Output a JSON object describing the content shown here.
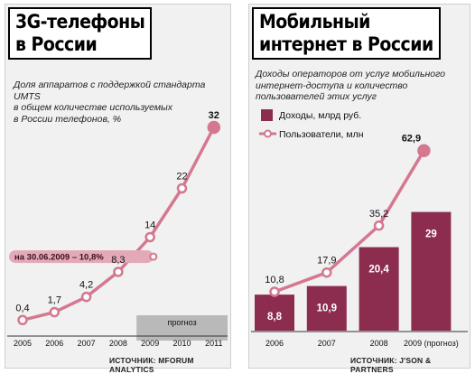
{
  "left_panel": {
    "title_line1": "3G-телефоны",
    "title_line2": "в России",
    "subtitle_lines": [
      "Доля аппаратов с поддержкой стандарта UMTS",
      "в общем количестве используемых",
      "в России телефонов, %"
    ],
    "forecast_label": "прогноз",
    "annotation": "на 30.06.2009 – 10,8%",
    "source": "ИСТОЧНИК: MFORUM ANALYTICS"
  },
  "right_panel": {
    "title_line1": "Мобильный",
    "title_line2": "интернет в России",
    "subtitle_lines": [
      "Доходы операторов от услуг мобильного",
      "интернет-доступа и количество",
      "пользователей этих услуг"
    ],
    "source": "ИСТОЧНИК: J'SON & PARTNERS"
  },
  "colors": {
    "line": "#d4788f",
    "bar": "#8c2c4e",
    "annotation_bg": "#e3a9b8",
    "forecast_bg": "#b9b9b9",
    "panel_bg": "#f1f1f1"
  },
  "chart_data": [
    {
      "type": "line",
      "title": "3G-телефоны в России",
      "x": [
        "2005",
        "2006",
        "2007",
        "2008",
        "2009",
        "2010",
        "2011"
      ],
      "values": [
        0.4,
        1.7,
        4.2,
        8.3,
        14,
        22,
        32
      ],
      "value_labels": [
        "0,4",
        "1,7",
        "4,2",
        "8,3",
        "14",
        "22",
        "32"
      ],
      "forecast": [
        "2009",
        "2010",
        "2011"
      ],
      "annotation": {
        "date": "30.06.2009",
        "value": 10.8,
        "text": "на 30.06.2009 – 10,8%"
      }
    },
    {
      "type": "bar+line",
      "title": "Мобильный интернет в России",
      "x": [
        "2006",
        "2007",
        "2008",
        "2009 (прогноз)"
      ],
      "series": [
        {
          "name": "Доходы, млрд руб.",
          "type": "bar",
          "values": [
            8.8,
            10.9,
            20.4,
            29
          ],
          "labels": [
            "8,8",
            "10,9",
            "20,4",
            "29"
          ]
        },
        {
          "name": "Пользователи, млн",
          "type": "line",
          "values": [
            10.8,
            17.9,
            35.2,
            62.9
          ],
          "labels": [
            "10,8",
            "17,9",
            "35,2",
            "62,9"
          ]
        }
      ]
    }
  ]
}
